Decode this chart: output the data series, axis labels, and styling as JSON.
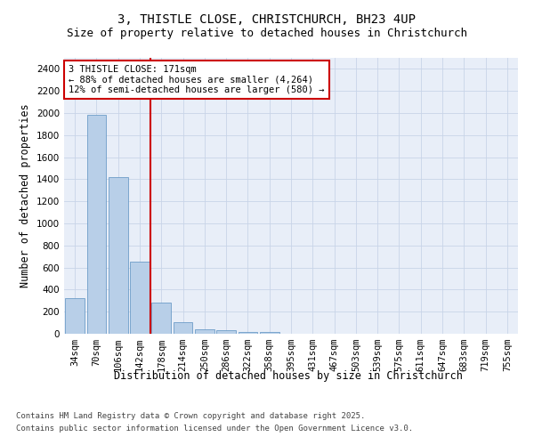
{
  "title_line1": "3, THISTLE CLOSE, CHRISTCHURCH, BH23 4UP",
  "title_line2": "Size of property relative to detached houses in Christchurch",
  "xlabel": "Distribution of detached houses by size in Christchurch",
  "ylabel": "Number of detached properties",
  "categories": [
    "34sqm",
    "70sqm",
    "106sqm",
    "142sqm",
    "178sqm",
    "214sqm",
    "250sqm",
    "286sqm",
    "322sqm",
    "358sqm",
    "395sqm",
    "431sqm",
    "467sqm",
    "503sqm",
    "539sqm",
    "575sqm",
    "611sqm",
    "647sqm",
    "683sqm",
    "719sqm",
    "755sqm"
  ],
  "values": [
    325,
    1980,
    1420,
    655,
    280,
    105,
    42,
    30,
    20,
    15,
    0,
    0,
    0,
    0,
    0,
    0,
    0,
    0,
    0,
    0,
    0
  ],
  "bar_color": "#b8cfe8",
  "bar_edge_color": "#5a8fc0",
  "vline_pos": 3.5,
  "vline_color": "#cc0000",
  "annotation_text": "3 THISTLE CLOSE: 171sqm\n← 88% of detached houses are smaller (4,264)\n12% of semi-detached houses are larger (580) →",
  "annotation_box_color": "#ffffff",
  "annotation_box_edge": "#cc0000",
  "ylim": [
    0,
    2500
  ],
  "yticks": [
    0,
    200,
    400,
    600,
    800,
    1000,
    1200,
    1400,
    1600,
    1800,
    2000,
    2200,
    2400
  ],
  "grid_color": "#c8d4e8",
  "background_color": "#e8eef8",
  "footer_line1": "Contains HM Land Registry data © Crown copyright and database right 2025.",
  "footer_line2": "Contains public sector information licensed under the Open Government Licence v3.0.",
  "title_fontsize": 10,
  "subtitle_fontsize": 9,
  "axis_label_fontsize": 8.5,
  "tick_fontsize": 7.5,
  "annotation_fontsize": 7.5,
  "footer_fontsize": 6.5
}
